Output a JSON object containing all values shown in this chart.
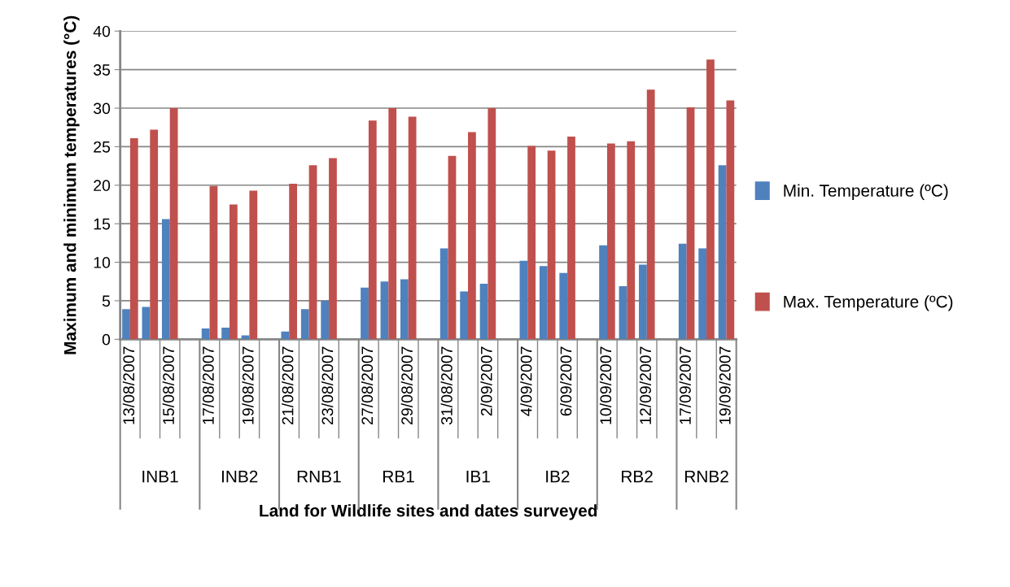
{
  "chart_data": {
    "type": "bar",
    "xlabel": "Land for Wildlife sites and dates surveyed",
    "ylabel": "Maximum and minimum temperatures (°C)",
    "categories": [
      "13/08/2007",
      null,
      "15/08/2007",
      null,
      "17/08/2007",
      null,
      "19/08/2007",
      null,
      "21/08/2007",
      null,
      "23/08/2007",
      null,
      "27/08/2007",
      null,
      "29/08/2007",
      null,
      "31/08/2007",
      null,
      "2/09/2007",
      null,
      "4/09/2007",
      null,
      "6/09/2007",
      null,
      "10/09/2007",
      null,
      "12/09/2007",
      null,
      "17/09/2007",
      null,
      "19/09/2007"
    ],
    "series": [
      {
        "name": "Min. Temperature (ºC)",
        "color": "#4f81bd",
        "values": [
          3.9,
          4.2,
          15.6,
          null,
          1.4,
          1.5,
          0.5,
          null,
          1.0,
          3.9,
          5.0,
          null,
          6.7,
          7.5,
          7.8,
          null,
          11.8,
          6.2,
          7.2,
          null,
          10.2,
          9.5,
          8.6,
          null,
          12.2,
          6.9,
          9.7,
          null,
          12.4,
          11.8,
          22.6
        ]
      },
      {
        "name": "Max. Temperature (ºC)",
        "color": "#c0504d",
        "values": [
          26.1,
          27.2,
          30.0,
          null,
          19.9,
          17.5,
          19.3,
          null,
          20.2,
          22.6,
          23.5,
          null,
          28.4,
          30.0,
          28.9,
          null,
          23.8,
          26.9,
          30.0,
          null,
          25.1,
          24.5,
          26.3,
          null,
          25.4,
          25.7,
          32.4,
          null,
          30.1,
          36.3,
          31.0
        ]
      }
    ],
    "annotations": [
      "INB1",
      "INB2",
      "RNB1",
      "RB1",
      "IB1",
      "IB2",
      "RB2",
      "RNB2"
    ],
    "ylim": [
      0,
      40
    ],
    "yticks": [
      0,
      5,
      10,
      15,
      20,
      25,
      30,
      35,
      40
    ],
    "grid": "y",
    "legend": "right"
  }
}
